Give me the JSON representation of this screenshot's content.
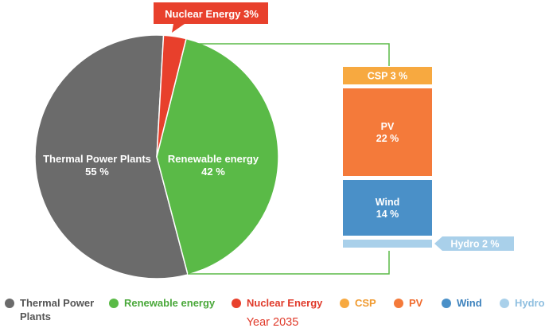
{
  "chart_data": [
    {
      "type": "pie",
      "slices": [
        {
          "name": "Thermal Power Plants",
          "value": 55,
          "label": "Thermal Power Plants",
          "value_label": "55 %",
          "color": "#6b6b6b"
        },
        {
          "name": "Renewable energy",
          "value": 42,
          "label": "Renewable energy",
          "value_label": "42 %",
          "color": "#5aba47"
        },
        {
          "name": "Nuclear Energy",
          "value": 3,
          "label": "Nuclear Energy 3%",
          "color": "#e8402c"
        }
      ]
    },
    {
      "type": "bar",
      "stacked": true,
      "segments": [
        {
          "name": "CSP",
          "value": 3,
          "label": "CSP 3 %",
          "color": "#f7a940"
        },
        {
          "name": "PV",
          "value": 22,
          "label_line1": "PV",
          "label_line2": "22 %",
          "color": "#f47a3a"
        },
        {
          "name": "Wind",
          "value": 14,
          "label_line1": "Wind",
          "label_line2": "14 %",
          "color": "#4a90c8"
        },
        {
          "name": "Hydro",
          "value": 2,
          "label": "Hydro 2 %",
          "color": "#a9d0ea"
        }
      ]
    }
  ],
  "legend": [
    {
      "label": "Thermal Power Plants",
      "color": "#6b6b6b",
      "text_color": "#555555"
    },
    {
      "label": "Renewable energy",
      "color": "#5aba47",
      "text_color": "#4aa83a"
    },
    {
      "label": "Nuclear Energy",
      "color": "#e8402c",
      "text_color": "#e03a2a"
    },
    {
      "label": "CSP",
      "color": "#f7a940",
      "text_color": "#f09a2f"
    },
    {
      "label": "PV",
      "color": "#f47a3a",
      "text_color": "#f06a2c"
    },
    {
      "label": "Wind",
      "color": "#4a90c8",
      "text_color": "#3d82bd"
    },
    {
      "label": "Hydro",
      "color": "#a9d0ea",
      "text_color": "#8fbfe0"
    }
  ],
  "caption": "Year 2035"
}
